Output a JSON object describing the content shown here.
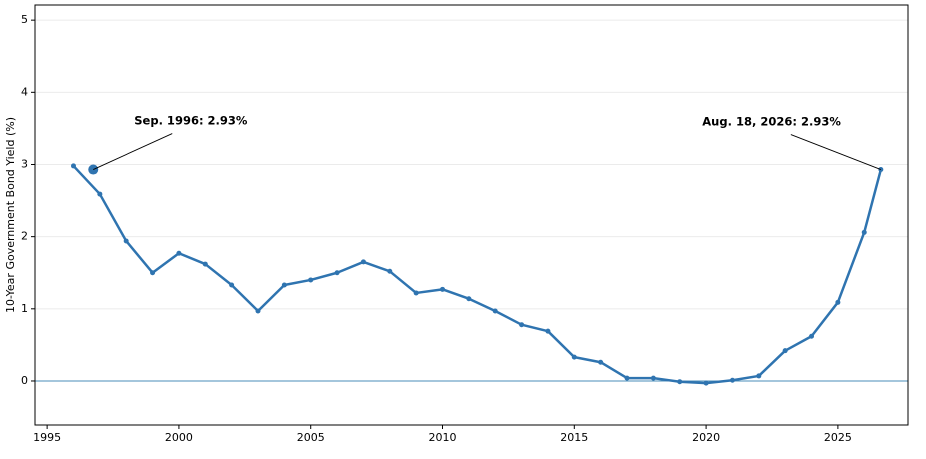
{
  "chart_data": {
    "type": "line",
    "ylabel": "10-Year Government Bond Yield (%)",
    "x": [
      1996,
      1997,
      1998,
      1999,
      2000,
      2001,
      2002,
      2003,
      2004,
      2005,
      2006,
      2007,
      2008,
      2009,
      2010,
      2011,
      2012,
      2013,
      2014,
      2015,
      2016,
      2017,
      2018,
      2019,
      2020,
      2021,
      2022,
      2023,
      2024,
      2025,
      2026,
      2026.63
    ],
    "series": [
      {
        "color": "#2f74b0",
        "values": [
          2.98,
          2.59,
          1.94,
          1.5,
          1.77,
          1.62,
          1.33,
          0.97,
          1.33,
          1.4,
          1.5,
          1.65,
          1.52,
          1.22,
          1.27,
          1.14,
          0.97,
          0.78,
          0.69,
          0.33,
          0.26,
          0.04,
          0.04,
          -0.01,
          -0.03,
          0.01,
          0.07,
          0.42,
          0.62,
          1.09,
          2.06,
          2.93
        ]
      }
    ],
    "highlight": {
      "x": 1996.75,
      "y": 2.93,
      "color": "#2f74b0"
    },
    "annotations": [
      {
        "text": "Sep. 1996: 2.93%",
        "x": 1996.75,
        "y": 2.93
      },
      {
        "text": "Aug. 18, 2026: 2.93%",
        "x": 2026.63,
        "y": 2.93
      }
    ],
    "hline": {
      "y": 0,
      "color": "#4a8db8"
    },
    "xlim": [
      1994.54,
      2027.66
    ],
    "xticks": [
      1995,
      2000,
      2005,
      2010,
      2015,
      2020,
      2025
    ],
    "ylim": [
      -0.61,
      5.21
    ],
    "yticks": [
      0,
      1,
      2,
      3,
      4,
      5
    ],
    "grid": true
  }
}
